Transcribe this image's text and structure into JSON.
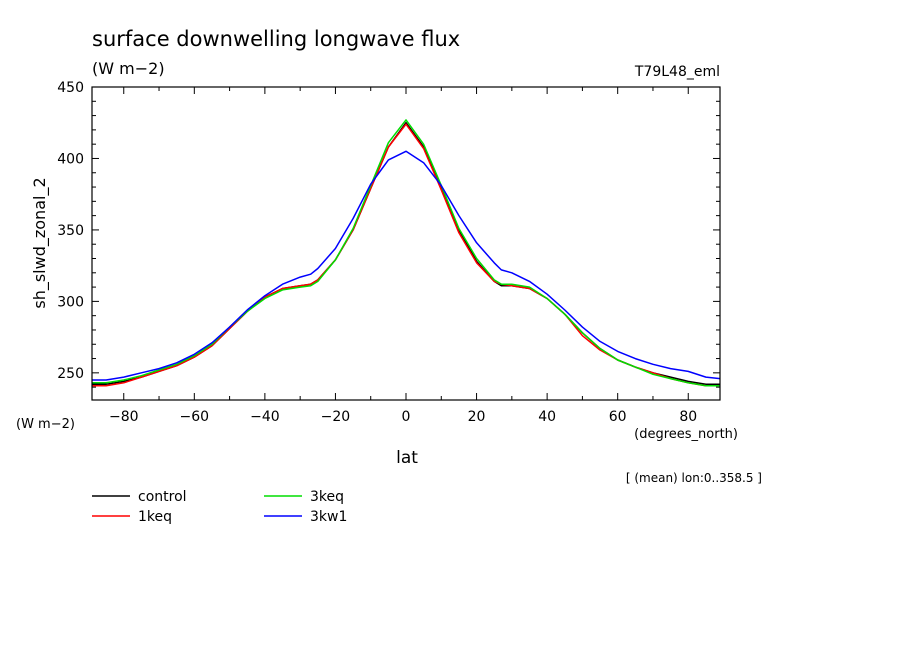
{
  "chart_data": {
    "type": "line",
    "title": "surface downwelling longwave flux",
    "subtitle": "(W m−2)",
    "run_label": "T79L48_eml",
    "ylabel": "sh_slwd_zonal_2",
    "y_units": "(W m−2)",
    "xlabel": "lat",
    "x_units": "(degrees_north)",
    "footnote": "[ (mean) lon:0..358.5 ]",
    "xlim": [
      -89,
      89
    ],
    "ylim": [
      231,
      450
    ],
    "x_ticks": [
      -80,
      -60,
      -40,
      -20,
      0,
      20,
      40,
      60,
      80
    ],
    "x_tick_labels": [
      "−80",
      "−60",
      "−40",
      "−20",
      "0",
      "20",
      "40",
      "60",
      "80"
    ],
    "y_ticks": [
      250,
      300,
      350,
      400,
      450
    ],
    "y_tick_labels": [
      "250",
      "300",
      "350",
      "400",
      "450"
    ],
    "x": [
      -89,
      -85,
      -80,
      -75,
      -70,
      -65,
      -60,
      -55,
      -50,
      -45,
      -40,
      -35,
      -30,
      -27,
      -25,
      -20,
      -15,
      -10,
      -5,
      0,
      5,
      10,
      15,
      20,
      25,
      27,
      30,
      35,
      40,
      45,
      50,
      55,
      60,
      65,
      70,
      75,
      80,
      85,
      89
    ],
    "series": [
      {
        "name": "control",
        "color": "#000000",
        "values": [
          242,
          242,
          244,
          247,
          251,
          255,
          261,
          269,
          281,
          293,
          303,
          309,
          311,
          312,
          315,
          329,
          350,
          379,
          408,
          425,
          408,
          379,
          350,
          328,
          314,
          311,
          311,
          309,
          302,
          291,
          278,
          267,
          259,
          254,
          250,
          247,
          244,
          242,
          242
        ]
      },
      {
        "name": "1keq",
        "color": "#ff0000",
        "values": [
          241,
          241,
          243,
          247,
          251,
          255,
          261,
          269,
          281,
          293,
          303,
          309,
          311,
          312,
          315,
          329,
          350,
          379,
          408,
          424,
          407,
          378,
          348,
          327,
          314,
          312,
          311,
          309,
          302,
          291,
          276,
          266,
          259,
          254,
          250,
          246,
          243,
          241,
          241
        ]
      },
      {
        "name": "3keq",
        "color": "#00dd00",
        "values": [
          243,
          243,
          245,
          248,
          252,
          256,
          262,
          270,
          282,
          293,
          302,
          308,
          310,
          311,
          314,
          329,
          351,
          381,
          411,
          427,
          410,
          381,
          351,
          330,
          315,
          312,
          312,
          310,
          302,
          291,
          278,
          267,
          259,
          254,
          249,
          246,
          243,
          241,
          241
        ]
      },
      {
        "name": "3kw1",
        "color": "#0000ff",
        "values": [
          245,
          245,
          247,
          250,
          253,
          257,
          263,
          271,
          282,
          294,
          304,
          312,
          317,
          319,
          323,
          337,
          358,
          382,
          399,
          405,
          397,
          381,
          360,
          341,
          327,
          322,
          320,
          314,
          305,
          294,
          282,
          272,
          265,
          260,
          256,
          253,
          251,
          247,
          246
        ]
      }
    ],
    "legend": {
      "placement": "bottom-left",
      "columns": 2
    },
    "grid": false
  }
}
